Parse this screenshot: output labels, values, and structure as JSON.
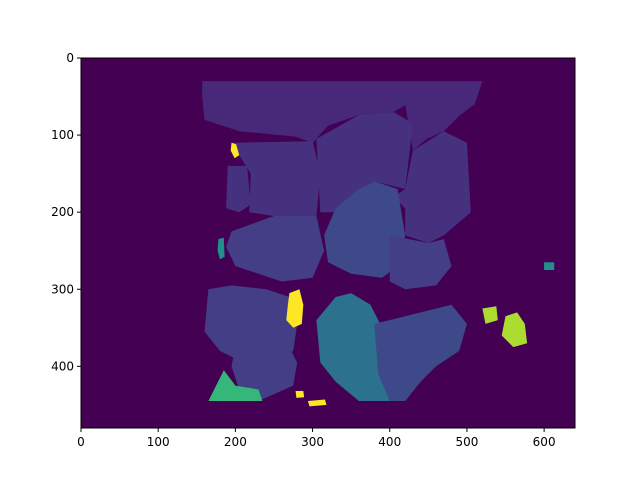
{
  "colors": {
    "background": "#440154",
    "label_a": "#482878",
    "label_b": "#46317e",
    "label_c": "#433e85",
    "label_d": "#3e4989",
    "label_e": "#2c718e",
    "label_f": "#21908d",
    "label_g": "#35b779",
    "label_h": "#addc30",
    "label_i": "#fde725"
  },
  "chart_data": {
    "type": "heatmap",
    "title": "",
    "xlabel": "",
    "ylabel": "",
    "xlim": [
      0,
      640
    ],
    "ylim": [
      480,
      0
    ],
    "y_inverted": true,
    "image_size": [
      640,
      480
    ],
    "colormap": "viridis",
    "x_ticks": [
      0,
      100,
      200,
      300,
      400,
      500,
      600
    ],
    "y_ticks": [
      0,
      100,
      200,
      300,
      400
    ],
    "x_tick_labels": [
      "0",
      "100",
      "200",
      "300",
      "400",
      "500",
      "600"
    ],
    "y_tick_labels": [
      "0",
      "100",
      "200",
      "300",
      "400"
    ],
    "content": "segmentation label map"
  }
}
